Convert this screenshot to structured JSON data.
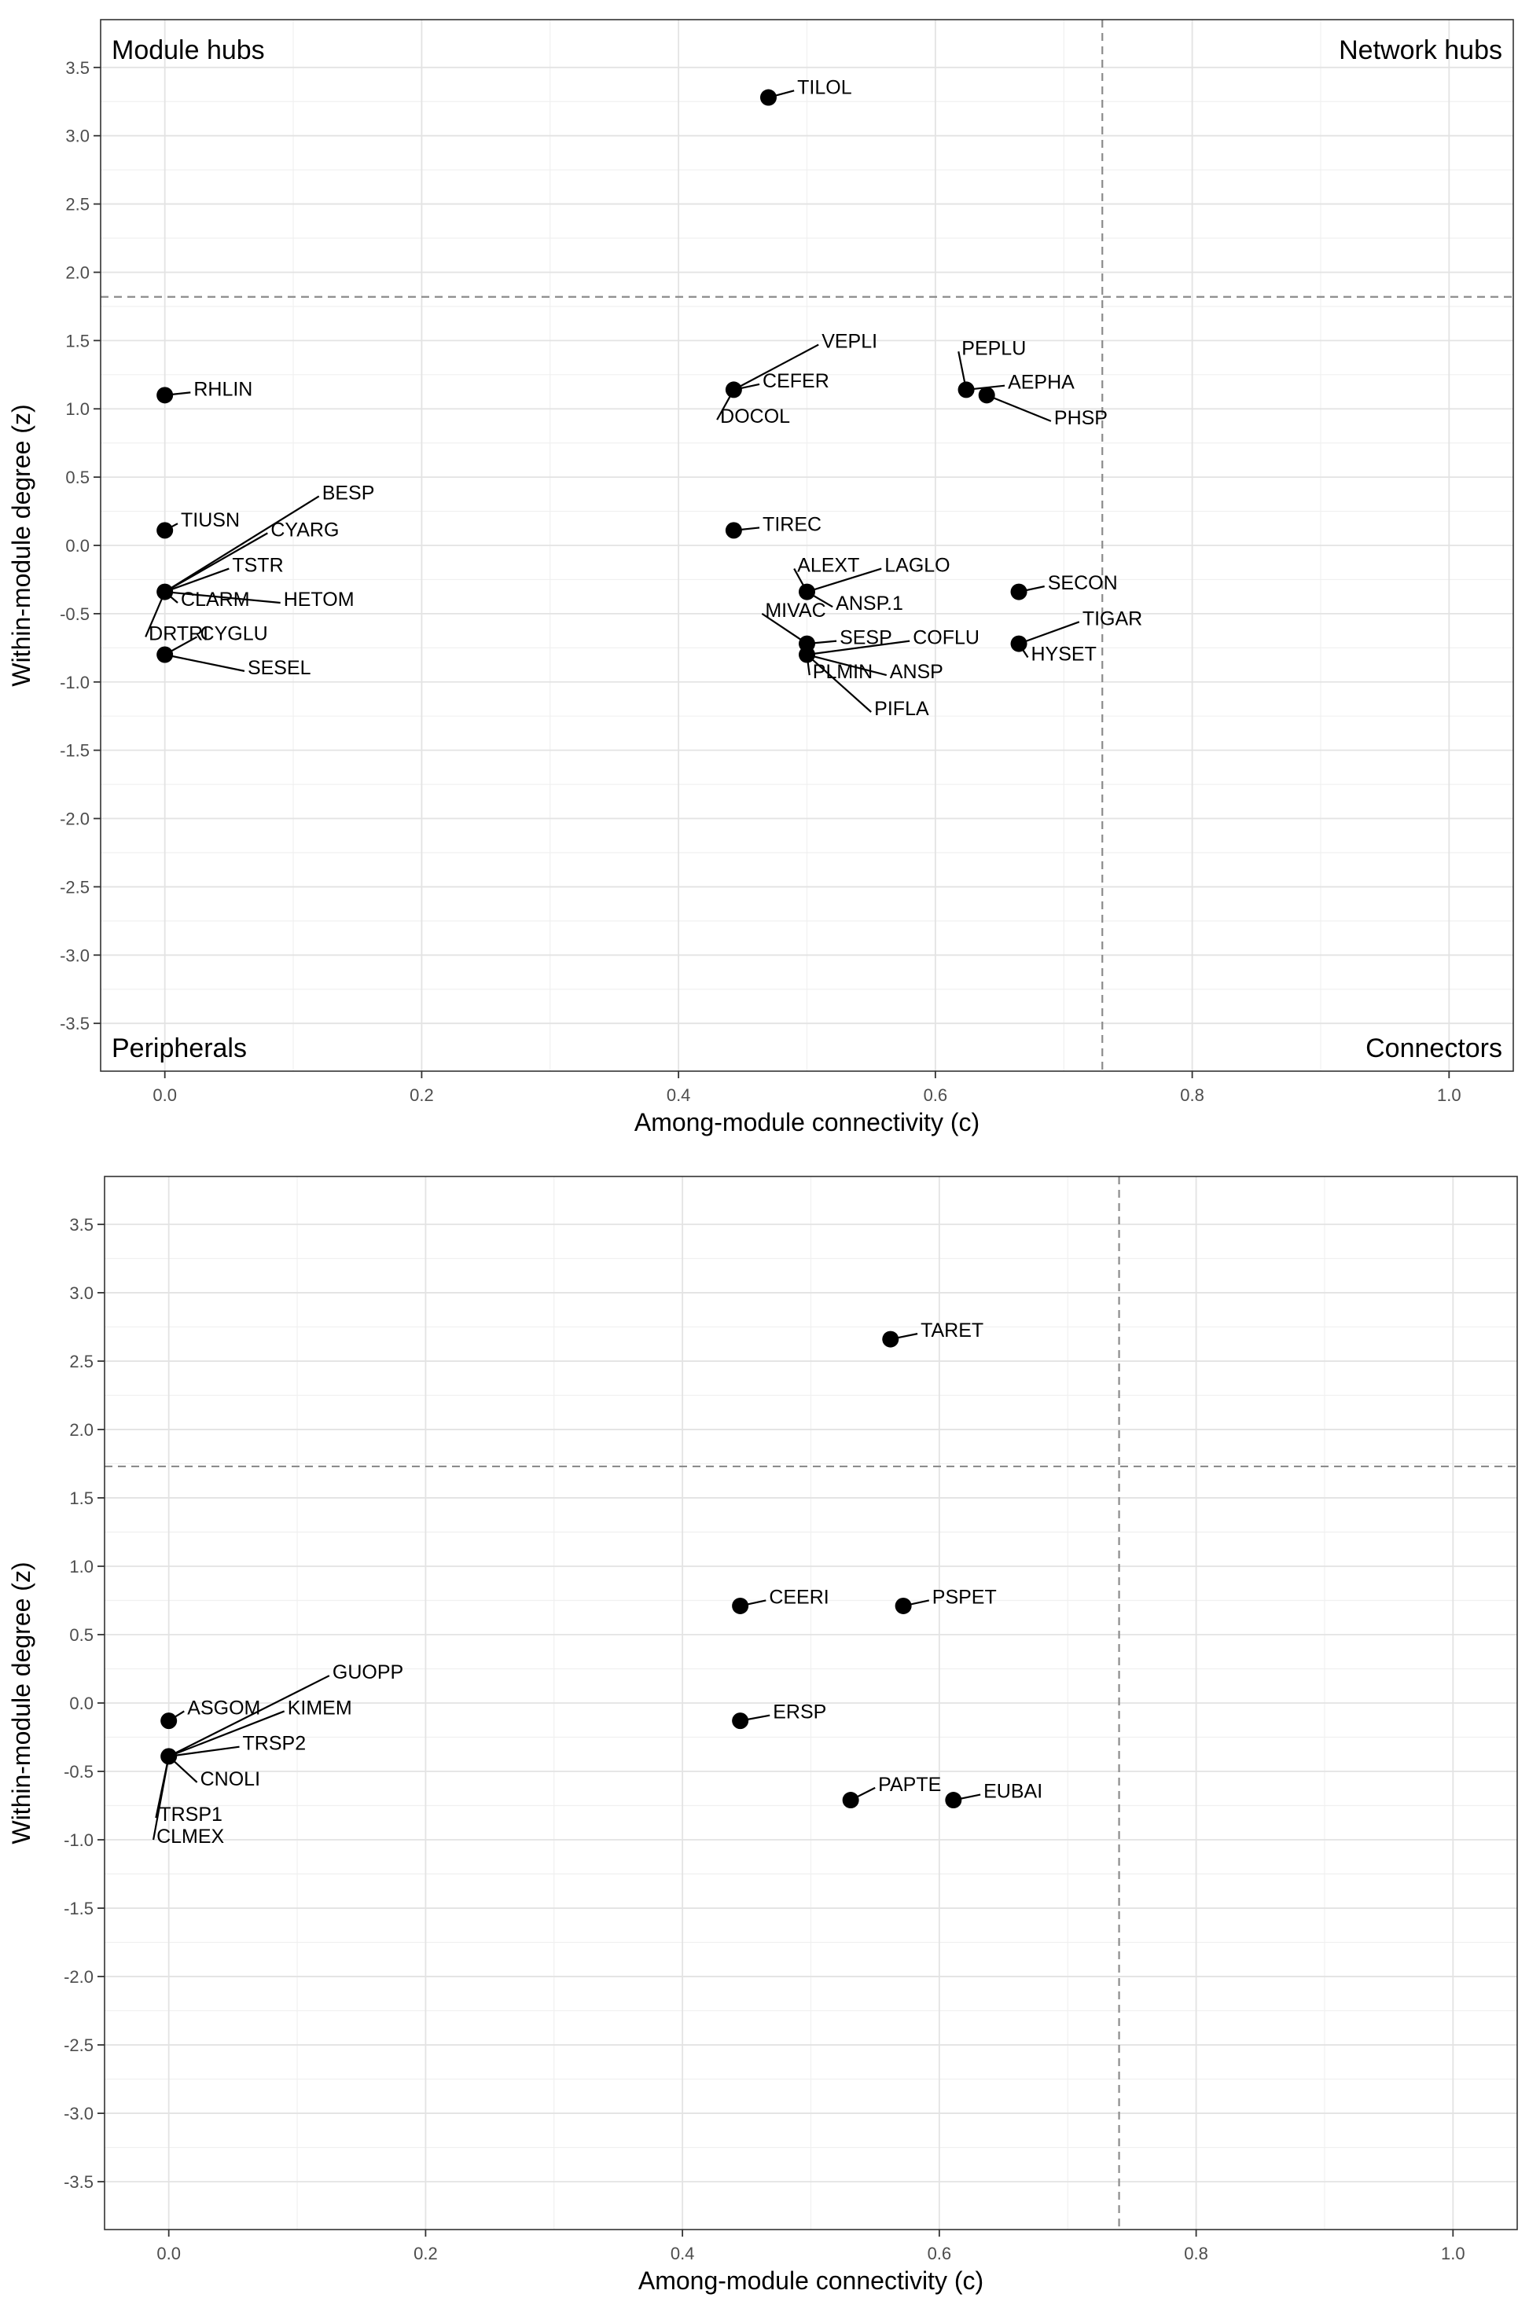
{
  "chart_data": [
    {
      "type": "scatter",
      "xlabel": "Among-module connectivity (c)",
      "ylabel": "Within-module degree (z)",
      "xlim": [
        -0.05,
        1.05
      ],
      "ylim": [
        -3.85,
        3.85
      ],
      "x_ticks": [
        0.0,
        0.2,
        0.4,
        0.6,
        0.8,
        1.0
      ],
      "x_tick_labels": [
        "0.0",
        "0.2",
        "0.4",
        "0.6",
        "0.8",
        "1.0"
      ],
      "y_ticks": [
        3.5,
        3.0,
        2.5,
        2.0,
        1.5,
        1.0,
        0.5,
        0.0,
        -0.5,
        -1.0,
        -1.5,
        -2.0,
        -2.5,
        -3.0,
        -3.5
      ],
      "y_tick_labels": [
        "3.5",
        "3.0",
        "2.5",
        "2.0",
        "1.5",
        "1.0",
        "0.5",
        "0.0",
        "-0.5",
        "-1.0",
        "-1.5",
        "-2.0",
        "-2.5",
        "-3.0",
        "-3.5"
      ],
      "thresholds": {
        "x": 0.73,
        "y": 1.82
      },
      "quadrant_labels": {
        "top_left": "Module hubs",
        "top_right": "Network hubs",
        "bottom_left": "Peripherals",
        "bottom_right": "Connectors"
      },
      "grid": true,
      "points": [
        {
          "x": 0.47,
          "y": 3.28
        },
        {
          "x": 0.0,
          "y": 1.1
        },
        {
          "x": 0.0,
          "y": 0.11
        },
        {
          "x": 0.0,
          "y": -0.34
        },
        {
          "x": 0.0,
          "y": -0.8
        },
        {
          "x": 0.443,
          "y": 1.14
        },
        {
          "x": 0.443,
          "y": 0.11
        },
        {
          "x": 0.5,
          "y": -0.34
        },
        {
          "x": 0.5,
          "y": -0.72
        },
        {
          "x": 0.5,
          "y": -0.8
        },
        {
          "x": 0.624,
          "y": 1.14
        },
        {
          "x": 0.64,
          "y": 1.1
        },
        {
          "x": 0.665,
          "y": -0.34
        },
        {
          "x": 0.665,
          "y": -0.72
        }
      ],
      "labels": [
        {
          "text": "TILOL",
          "x": 0.47,
          "y": 3.28,
          "lx": 0.49,
          "ly": 3.33
        },
        {
          "text": "RHLIN",
          "x": 0.0,
          "y": 1.1,
          "lx": 0.02,
          "ly": 1.12
        },
        {
          "text": "TIUSN",
          "x": 0.0,
          "y": 0.11,
          "lx": 0.01,
          "ly": 0.16
        },
        {
          "text": "BESP",
          "x": 0.0,
          "y": -0.34,
          "lx": 0.12,
          "ly": 0.36
        },
        {
          "text": "CYARG",
          "x": 0.0,
          "y": -0.34,
          "lx": 0.08,
          "ly": 0.09
        },
        {
          "text": "TSTR",
          "x": 0.0,
          "y": -0.34,
          "lx": 0.05,
          "ly": -0.17
        },
        {
          "text": "CLARM",
          "x": 0.0,
          "y": -0.34,
          "lx": 0.01,
          "ly": -0.42
        },
        {
          "text": "HETOM",
          "x": 0.0,
          "y": -0.34,
          "lx": 0.09,
          "ly": -0.42
        },
        {
          "text": "DRTRI",
          "x": 0.0,
          "y": -0.34,
          "lx": -0.015,
          "ly": -0.67
        },
        {
          "text": "CYGLU",
          "x": 0.0,
          "y": -0.8,
          "lx": 0.025,
          "ly": -0.67
        },
        {
          "text": "SESEL",
          "x": 0.0,
          "y": -0.8,
          "lx": 0.062,
          "ly": -0.92
        },
        {
          "text": "VEPLI",
          "x": 0.443,
          "y": 1.14,
          "lx": 0.509,
          "ly": 1.47
        },
        {
          "text": "CEFER",
          "x": 0.443,
          "y": 1.14,
          "lx": 0.463,
          "ly": 1.18
        },
        {
          "text": "DOCOL",
          "x": 0.443,
          "y": 1.14,
          "lx": 0.43,
          "ly": 0.92
        },
        {
          "text": "TIREC",
          "x": 0.443,
          "y": 0.11,
          "lx": 0.463,
          "ly": 0.13
        },
        {
          "text": "ALEXT",
          "x": 0.5,
          "y": -0.34,
          "lx": 0.49,
          "ly": -0.17
        },
        {
          "text": "LAGLO",
          "x": 0.5,
          "y": -0.34,
          "lx": 0.558,
          "ly": -0.17
        },
        {
          "text": "ANSP.1",
          "x": 0.5,
          "y": -0.34,
          "lx": 0.52,
          "ly": -0.45
        },
        {
          "text": "MIVAC",
          "x": 0.5,
          "y": -0.72,
          "lx": 0.465,
          "ly": -0.5
        },
        {
          "text": "SESP",
          "x": 0.5,
          "y": -0.72,
          "lx": 0.523,
          "ly": -0.7
        },
        {
          "text": "COFLU",
          "x": 0.5,
          "y": -0.8,
          "lx": 0.58,
          "ly": -0.7
        },
        {
          "text": "PLMIN",
          "x": 0.5,
          "y": -0.8,
          "lx": 0.502,
          "ly": -0.95
        },
        {
          "text": "ANSP",
          "x": 0.5,
          "y": -0.8,
          "lx": 0.562,
          "ly": -0.95
        },
        {
          "text": "PIFLA",
          "x": 0.5,
          "y": -0.8,
          "lx": 0.55,
          "ly": -1.22
        },
        {
          "text": "PEPLU",
          "x": 0.624,
          "y": 1.14,
          "lx": 0.618,
          "ly": 1.42
        },
        {
          "text": "AEPHA",
          "x": 0.624,
          "y": 1.14,
          "lx": 0.654,
          "ly": 1.17
        },
        {
          "text": "PHSP",
          "x": 0.64,
          "y": 1.1,
          "lx": 0.69,
          "ly": 0.91
        },
        {
          "text": "SECON",
          "x": 0.665,
          "y": -0.34,
          "lx": 0.685,
          "ly": -0.3
        },
        {
          "text": "TIGAR",
          "x": 0.665,
          "y": -0.72,
          "lx": 0.712,
          "ly": -0.56
        },
        {
          "text": "HYSET",
          "x": 0.665,
          "y": -0.72,
          "lx": 0.672,
          "ly": -0.82
        }
      ]
    },
    {
      "type": "scatter",
      "xlabel": "Among-module connectivity (c)",
      "ylabel": "Within-module degree (z)",
      "xlim": [
        -0.05,
        1.05
      ],
      "ylim": [
        -3.85,
        3.85
      ],
      "x_ticks": [
        0.0,
        0.2,
        0.4,
        0.6,
        0.8,
        1.0
      ],
      "x_tick_labels": [
        "0.0",
        "0.2",
        "0.4",
        "0.6",
        "0.8",
        "1.0"
      ],
      "y_ticks": [
        3.5,
        3.0,
        2.5,
        2.0,
        1.5,
        1.0,
        0.5,
        0.0,
        -0.5,
        -1.0,
        -1.5,
        -2.0,
        -2.5,
        -3.0,
        -3.5
      ],
      "y_tick_labels": [
        "3.5",
        "3.0",
        "2.5",
        "2.0",
        "1.5",
        "1.0",
        "0.5",
        "0.0",
        "-0.5",
        "-1.0",
        "-1.5",
        "-2.0",
        "-2.5",
        "-3.0",
        "-3.5"
      ],
      "thresholds": {
        "x": 0.74,
        "y": 1.73
      },
      "grid": true,
      "points": [
        {
          "x": 0.562,
          "y": 2.66
        },
        {
          "x": 0.0,
          "y": -0.13
        },
        {
          "x": 0.0,
          "y": -0.39
        },
        {
          "x": 0.445,
          "y": 0.71
        },
        {
          "x": 0.572,
          "y": 0.71
        },
        {
          "x": 0.445,
          "y": -0.13
        },
        {
          "x": 0.531,
          "y": -0.71
        },
        {
          "x": 0.611,
          "y": -0.71
        }
      ],
      "labels": [
        {
          "text": "TARET",
          "x": 0.562,
          "y": 2.66,
          "lx": 0.583,
          "ly": 2.7
        },
        {
          "text": "ASGOM",
          "x": 0.0,
          "y": -0.13,
          "lx": 0.012,
          "ly": -0.06
        },
        {
          "text": "GUOPP",
          "x": 0.0,
          "y": -0.39,
          "lx": 0.125,
          "ly": 0.2
        },
        {
          "text": "KIMEM",
          "x": 0.0,
          "y": -0.39,
          "lx": 0.09,
          "ly": -0.06
        },
        {
          "text": "TRSP2",
          "x": 0.0,
          "y": -0.39,
          "lx": 0.055,
          "ly": -0.32
        },
        {
          "text": "CNOLI",
          "x": 0.0,
          "y": -0.39,
          "lx": 0.022,
          "ly": -0.58
        },
        {
          "text": "TRSP1",
          "x": 0.0,
          "y": -0.39,
          "lx": -0.01,
          "ly": -0.84
        },
        {
          "text": "CLMEX",
          "x": 0.0,
          "y": -0.39,
          "lx": -0.012,
          "ly": -1.0
        },
        {
          "text": "CEERI",
          "x": 0.445,
          "y": 0.71,
          "lx": 0.465,
          "ly": 0.75
        },
        {
          "text": "PSPET",
          "x": 0.572,
          "y": 0.71,
          "lx": 0.592,
          "ly": 0.75
        },
        {
          "text": "ERSP",
          "x": 0.445,
          "y": -0.13,
          "lx": 0.468,
          "ly": -0.09
        },
        {
          "text": "PAPTE",
          "x": 0.531,
          "y": -0.71,
          "lx": 0.55,
          "ly": -0.62
        },
        {
          "text": "EUBAI",
          "x": 0.611,
          "y": -0.71,
          "lx": 0.632,
          "ly": -0.67
        }
      ]
    }
  ]
}
